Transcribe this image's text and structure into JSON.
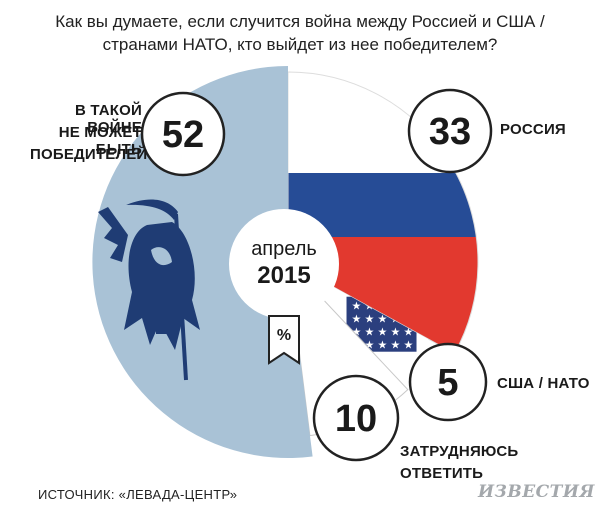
{
  "question": "Как вы думаете, если случится война между Россией и США /\nстранами НАТО, кто выйдет из нее победителем?",
  "chart_data": {
    "type": "pie",
    "center_label": [
      "апрель",
      "2015"
    ],
    "unit_badge": "%",
    "slices": [
      {
        "label": "РОССИЯ",
        "value": 33,
        "color": "#d6372f"
      },
      {
        "label": "США / НАТО",
        "value": 5,
        "color": "#2f4d8c"
      },
      {
        "label": "ЗАТРУДНЯЮСЬ ОТВЕТИТЬ",
        "value": 10,
        "color": "#ffffff"
      },
      {
        "label": "В ТАКОЙ ВОЙНЕ НЕ МОЖЕТ БЫТЬ ПОБЕДИТЕЛЕЙ",
        "value": 52,
        "color": "#a9c2d6"
      }
    ]
  },
  "labels": {
    "russia": "РОССИЯ",
    "usa": "США / НАТО",
    "hard_1": "ЗАТРУДНЯЮСЬ",
    "hard_2": "ОТВЕТИТЬ",
    "nowin_1": "В ТАКОЙ ВОЙНЕ",
    "nowin_2": "НЕ МОЖЕТ БЫТЬ",
    "nowin_3": "ПОБЕДИТЕЛЕЙ"
  },
  "source": "ИСТОЧНИК: «ЛЕВАДА-ЦЕНТР»",
  "brand": "ИЗВЕСТИЯ",
  "colors": {
    "russia_white": "#ffffff",
    "russia_blue": "#264c96",
    "russia_red": "#e2392f",
    "usa_blue": "#2b3f7e",
    "usa_red": "#c83b34",
    "no_winner": "#a9c2d6",
    "outline": "#222222",
    "reaper": "#1f3c74"
  }
}
